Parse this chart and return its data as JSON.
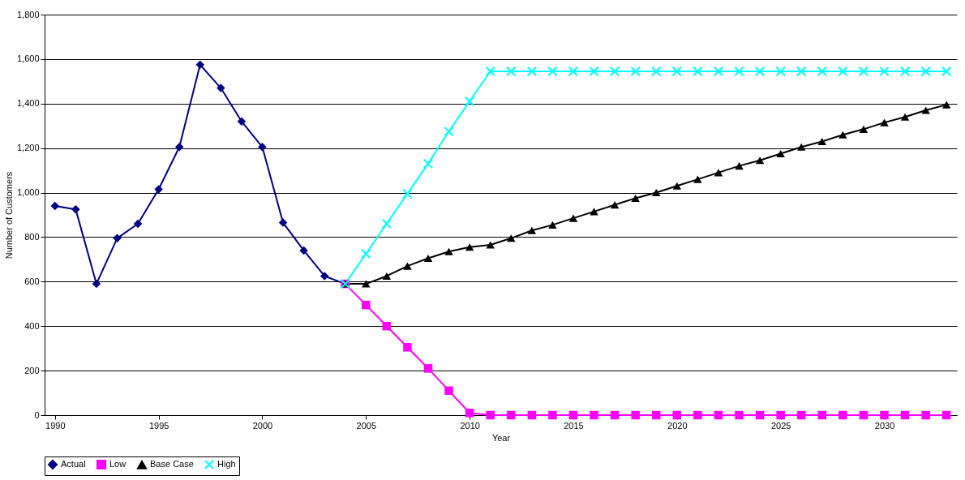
{
  "chart_data": {
    "type": "line",
    "xlabel": "Year",
    "ylabel": "Number of Customers",
    "xlim": [
      1989.5,
      2033.5
    ],
    "xticks": [
      1990,
      1995,
      2000,
      2005,
      2010,
      2015,
      2020,
      2025,
      2030
    ],
    "ylim": [
      0,
      1800
    ],
    "yticks": [
      0,
      200,
      400,
      600,
      800,
      {
        "value": 1000,
        "label": "1,000"
      },
      {
        "value": 1200,
        "label": "1,200"
      },
      {
        "value": 1400,
        "label": "1,400"
      },
      {
        "value": 1600,
        "label": "1,600"
      },
      {
        "value": 1800,
        "label": "1,800"
      }
    ],
    "grid": "y",
    "legend": "bottom",
    "series": [
      {
        "name": "Actual",
        "color": "#000080",
        "marker": "diamond",
        "x": [
          1990,
          1991,
          1992,
          1993,
          1994,
          1995,
          1996,
          1997,
          1998,
          1999,
          2000,
          2001,
          2002,
          2003,
          2004
        ],
        "values": [
          940,
          925,
          590,
          795,
          860,
          1015,
          1205,
          1575,
          1470,
          1320,
          1205,
          865,
          740,
          625,
          590
        ]
      },
      {
        "name": "Low",
        "color": "#ff00ff",
        "marker": "square",
        "x": [
          2004,
          2005,
          2006,
          2007,
          2008,
          2009,
          2010,
          2011,
          2012,
          2013,
          2014,
          2015,
          2016,
          2017,
          2018,
          2019,
          2020,
          2021,
          2022,
          2023,
          2024,
          2025,
          2026,
          2027,
          2028,
          2029,
          2030,
          2031,
          2032,
          2033
        ],
        "values": [
          590,
          495,
          400,
          305,
          210,
          110,
          10,
          0,
          0,
          0,
          0,
          0,
          0,
          0,
          0,
          0,
          0,
          0,
          0,
          0,
          0,
          0,
          0,
          0,
          0,
          0,
          0,
          0,
          0,
          0
        ]
      },
      {
        "name": "Base Case",
        "color": "#000000",
        "marker": "triangle",
        "x": [
          2004,
          2005,
          2006,
          2007,
          2008,
          2009,
          2010,
          2011,
          2012,
          2013,
          2014,
          2015,
          2016,
          2017,
          2018,
          2019,
          2020,
          2021,
          2022,
          2023,
          2024,
          2025,
          2026,
          2027,
          2028,
          2029,
          2030,
          2031,
          2032,
          2033
        ],
        "values": [
          590,
          590,
          625,
          670,
          705,
          735,
          755,
          765,
          795,
          830,
          855,
          885,
          915,
          945,
          975,
          1000,
          1030,
          1060,
          1090,
          1120,
          1145,
          1175,
          1205,
          1230,
          1260,
          1285,
          1315,
          1340,
          1370,
          1395
        ]
      },
      {
        "name": "High",
        "color": "#00ffff",
        "marker": "cross",
        "x": [
          2004,
          2005,
          2006,
          2007,
          2008,
          2009,
          2010,
          2011,
          2012,
          2013,
          2014,
          2015,
          2016,
          2017,
          2018,
          2019,
          2020,
          2021,
          2022,
          2023,
          2024,
          2025,
          2026,
          2027,
          2028,
          2029,
          2030,
          2031,
          2032,
          2033
        ],
        "values": [
          590,
          725,
          860,
          995,
          1130,
          1275,
          1410,
          1545,
          1545,
          1545,
          1545,
          1545,
          1545,
          1545,
          1545,
          1545,
          1545,
          1545,
          1545,
          1545,
          1545,
          1545,
          1545,
          1545,
          1545,
          1545,
          1545,
          1545,
          1545,
          1545
        ]
      }
    ]
  }
}
